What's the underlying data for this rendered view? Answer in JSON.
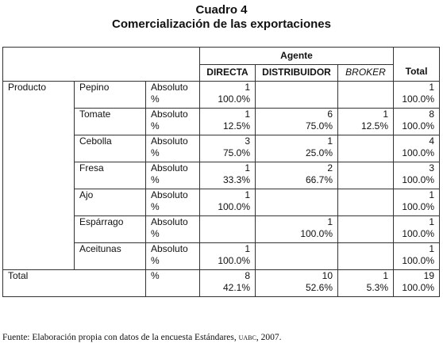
{
  "title": "Cuadro 4",
  "subtitle": "Comercialización de las exportaciones",
  "header": {
    "agente": "Agente",
    "cols": [
      "DIRECTA",
      "DISTRIBUIDOR",
      "BROKER"
    ],
    "total": "Total"
  },
  "row_group_label": "Producto",
  "measure_abs": "Absoluto",
  "measure_pct": "%",
  "rows": [
    {
      "product": "Pepino",
      "d": [
        "1",
        "100.0%"
      ],
      "dist": [
        "",
        ""
      ],
      "b": [
        "",
        ""
      ],
      "t": [
        "1",
        "100.0%"
      ]
    },
    {
      "product": "Tomate",
      "d": [
        "1",
        "12.5%"
      ],
      "dist": [
        "6",
        "75.0%"
      ],
      "b": [
        "1",
        "12.5%"
      ],
      "t": [
        "8",
        "100.0%"
      ]
    },
    {
      "product": "Cebolla",
      "d": [
        "3",
        "75.0%"
      ],
      "dist": [
        "1",
        "25.0%"
      ],
      "b": [
        "",
        ""
      ],
      "t": [
        "4",
        "100.0%"
      ]
    },
    {
      "product": "Fresa",
      "d": [
        "1",
        "33.3%"
      ],
      "dist": [
        "2",
        "66.7%"
      ],
      "b": [
        "",
        ""
      ],
      "t": [
        "3",
        "100.0%"
      ]
    },
    {
      "product": "Ajo",
      "d": [
        "1",
        "100.0%"
      ],
      "dist": [
        "",
        ""
      ],
      "b": [
        "",
        ""
      ],
      "t": [
        "1",
        "100.0%"
      ]
    },
    {
      "product": "Espárrago",
      "d": [
        "",
        ""
      ],
      "dist": [
        "1",
        "100.0%"
      ],
      "b": [
        "",
        ""
      ],
      "t": [
        "1",
        "100.0%"
      ]
    },
    {
      "product": "Aceitunas",
      "d": [
        "1",
        "100.0%"
      ],
      "dist": [
        "",
        ""
      ],
      "b": [
        "",
        ""
      ],
      "t": [
        "1",
        "100.0%"
      ]
    }
  ],
  "total_row": {
    "label": "Total",
    "measure": "%",
    "d": [
      "8",
      "42.1%"
    ],
    "dist": [
      "10",
      "52.6%"
    ],
    "b": [
      "1",
      "5.3%"
    ],
    "t": [
      "19",
      "100.0%"
    ]
  },
  "note": {
    "prefix": "Fuente: Elaboración propia con datos de la encuesta Estándares, ",
    "org": "uabc",
    "suffix": ", 2007."
  }
}
